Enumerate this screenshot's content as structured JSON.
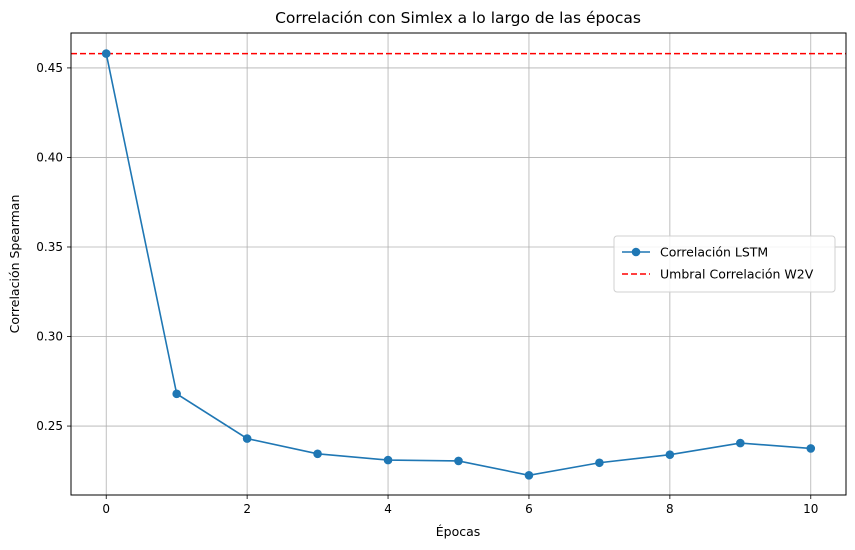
{
  "chart_data": {
    "type": "line",
    "title": "Correlación con Simlex a lo largo de las épocas",
    "xlabel": "Épocas",
    "ylabel": "Correlación Spearman",
    "xlim": [
      -0.5,
      10.5
    ],
    "ylim": [
      0.2115,
      0.4695
    ],
    "x_ticks": [
      0,
      2,
      4,
      6,
      8,
      10
    ],
    "x_tick_labels": [
      "0",
      "2",
      "4",
      "6",
      "8",
      "10"
    ],
    "y_ticks": [
      0.25,
      0.3,
      0.35,
      0.4,
      0.45
    ],
    "y_tick_labels": [
      "0.25",
      "0.30",
      "0.35",
      "0.40",
      "0.45"
    ],
    "grid": true,
    "legend_position": "center-right",
    "series": [
      {
        "name": "Correlación LSTM",
        "style": "line-with-markers",
        "color": "#1f77b4",
        "x": [
          0,
          1,
          2,
          3,
          4,
          5,
          6,
          7,
          8,
          9,
          10
        ],
        "values": [
          0.458,
          0.268,
          0.243,
          0.2345,
          0.231,
          0.2305,
          0.2225,
          0.2295,
          0.234,
          0.2405,
          0.2375
        ]
      }
    ],
    "reference_lines": [
      {
        "name": "Umbral Correlación W2V",
        "orientation": "horizontal",
        "y": 0.458,
        "style": "dashed",
        "color": "#ff0000"
      }
    ]
  }
}
